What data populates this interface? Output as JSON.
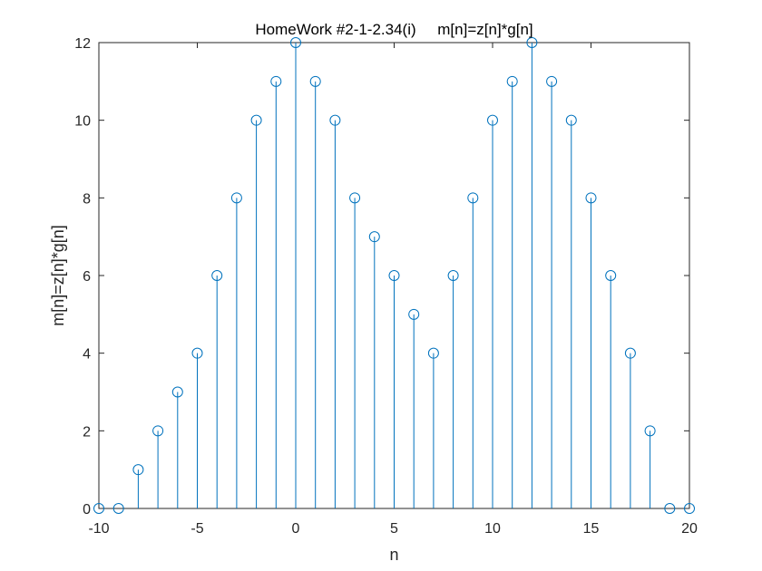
{
  "chart_data": {
    "type": "stem",
    "title": "HomeWork #2-1-2.34(i)     m[n]=z[n]*g[n]",
    "xlabel": "n",
    "ylabel": "m[n]=z[n]*g[n]",
    "xlim": [
      -10,
      20
    ],
    "ylim": [
      0,
      12
    ],
    "xticks": [
      -10,
      -5,
      0,
      5,
      10,
      15,
      20
    ],
    "yticks": [
      0,
      2,
      4,
      6,
      8,
      10,
      12
    ],
    "x": [
      -10,
      -9,
      -8,
      -7,
      -6,
      -5,
      -4,
      -3,
      -2,
      -1,
      0,
      1,
      2,
      3,
      4,
      5,
      6,
      7,
      8,
      9,
      10,
      11,
      12,
      13,
      14,
      15,
      16,
      17,
      18,
      19,
      20
    ],
    "y": [
      0,
      0,
      1,
      2,
      3,
      4,
      6,
      8,
      10,
      11,
      12,
      11,
      10,
      8,
      7,
      6,
      5,
      4,
      6,
      8,
      10,
      11,
      12,
      11,
      10,
      8,
      6,
      4,
      2,
      0,
      0
    ],
    "grid": false,
    "colors": {
      "stem": "#0072BD",
      "axes": "#262626"
    }
  }
}
